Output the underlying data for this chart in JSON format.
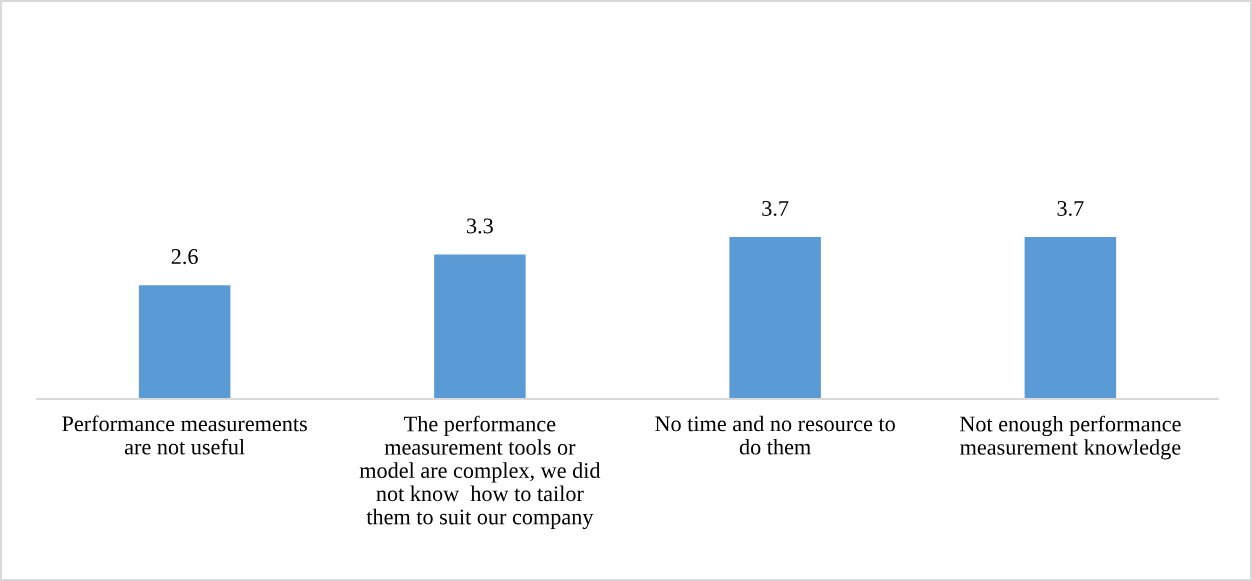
{
  "chart_data": {
    "type": "bar",
    "categories": [
      "Performance measurements\nare not useful",
      "The performance\nmeasurement tools or\nmodel are complex, we did\nnot know  how to tailor\nthem to suit our company",
      "No time and no resource to\ndo them",
      "Not enough performance\nmeasurement knowledge"
    ],
    "values": [
      2.6,
      3.3,
      3.7,
      3.7
    ],
    "color": "#5b9bd5",
    "data_labels": true,
    "tick_labels": "x"
  }
}
